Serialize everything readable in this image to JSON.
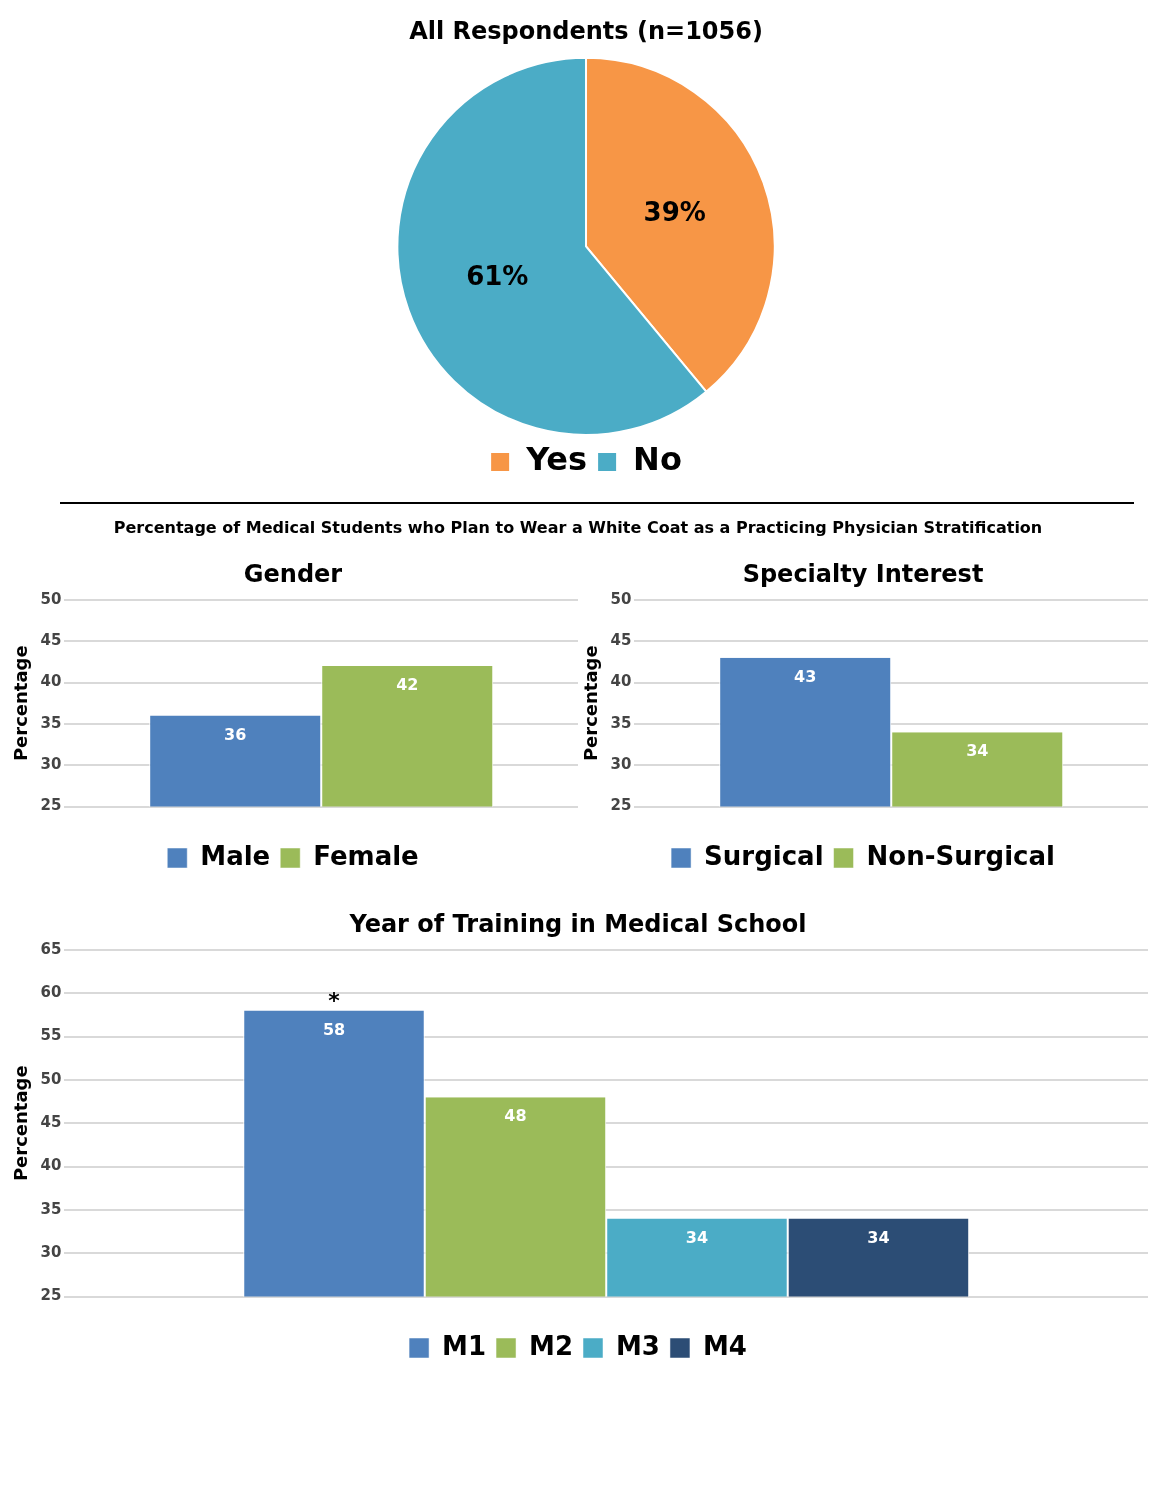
{
  "chart_data": [
    {
      "type": "pie",
      "title": "All Respondents (n=1056)",
      "categories": [
        "Yes",
        "No"
      ],
      "values": [
        39,
        61
      ],
      "colors": [
        "#f79646",
        "#4bacc6"
      ],
      "value_labels": [
        "39%",
        "61%"
      ],
      "legend": "bottom"
    },
    {
      "type": "bar",
      "title": "Gender",
      "subtitle": "Percentage of Medical Students who Plan to Wear a White Coat as a Practicing Physician Stratification",
      "categories": [
        null
      ],
      "ylabel": "Percentage",
      "ylim": [
        25,
        50
      ],
      "yticks": [
        25,
        30,
        35,
        40,
        45,
        50
      ],
      "grid": "y",
      "legend": "bottom",
      "data_labels": true,
      "series": [
        {
          "name": "Male",
          "color": "#4f81bd",
          "values": [
            36
          ]
        },
        {
          "name": "Female",
          "color": "#9bbb59",
          "values": [
            42
          ]
        }
      ]
    },
    {
      "type": "bar",
      "title": "Specialty Interest",
      "categories": [
        null
      ],
      "ylabel": "Percentage",
      "ylim": [
        25,
        50
      ],
      "yticks": [
        25,
        30,
        35,
        40,
        45,
        50
      ],
      "grid": "y",
      "legend": "bottom",
      "data_labels": true,
      "series": [
        {
          "name": "Surgical",
          "color": "#4f81bd",
          "values": [
            43
          ]
        },
        {
          "name": "Non-Surgical",
          "color": "#9bbb59",
          "values": [
            34
          ]
        }
      ]
    },
    {
      "type": "bar",
      "title": "Year of Training in Medical School",
      "categories": [
        null
      ],
      "ylabel": "Percentage",
      "ylim": [
        25,
        65
      ],
      "yticks": [
        25,
        30,
        35,
        40,
        45,
        50,
        55,
        60,
        65
      ],
      "grid": "y",
      "legend": "bottom",
      "data_labels": true,
      "annotations": [
        {
          "text": "*",
          "y": 58
        }
      ],
      "series": [
        {
          "name": "M1",
          "color": "#4f81bd",
          "values": [
            58
          ]
        },
        {
          "name": "M2",
          "color": "#9bbb59",
          "values": [
            48
          ]
        },
        {
          "name": "M3",
          "color": "#4bacc6",
          "values": [
            34
          ]
        },
        {
          "name": "M4",
          "color": "#2c4d75",
          "values": [
            34
          ]
        }
      ]
    }
  ]
}
